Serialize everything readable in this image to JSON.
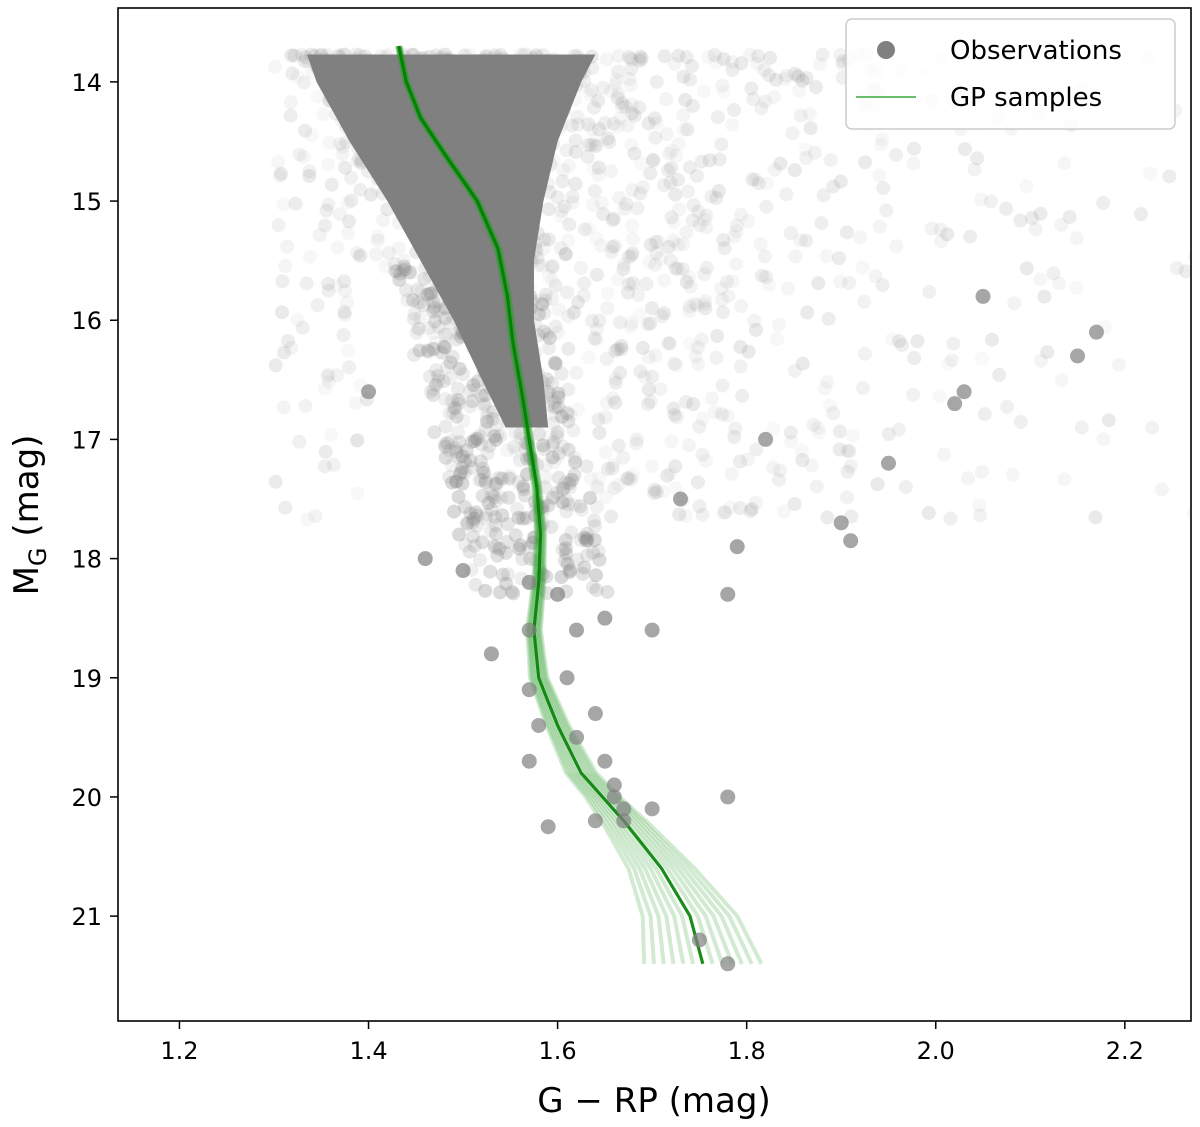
{
  "chart_data": {
    "type": "scatter",
    "title": "",
    "xlabel": "G − RP (mag)",
    "ylabel_main": "M",
    "ylabel_sub": "G",
    "ylabel_unit": " (mag)",
    "xlim": [
      1.135,
      2.27
    ],
    "ylim": [
      21.88,
      13.38
    ],
    "y_inverted": true,
    "grid": false,
    "legend_position": "top-right",
    "x_ticks": [
      {
        "value": 1.2,
        "label": "1.2"
      },
      {
        "value": 1.4,
        "label": "1.4"
      },
      {
        "value": 1.6,
        "label": "1.6"
      },
      {
        "value": 1.8,
        "label": "1.8"
      },
      {
        "value": 2.0,
        "label": "2.0"
      },
      {
        "value": 2.2,
        "label": "2.2"
      }
    ],
    "y_ticks": [
      {
        "value": 14,
        "label": "14"
      },
      {
        "value": 15,
        "label": "15"
      },
      {
        "value": 16,
        "label": "16"
      },
      {
        "value": 17,
        "label": "17"
      },
      {
        "value": 18,
        "label": "18"
      },
      {
        "value": 19,
        "label": "19"
      },
      {
        "value": 20,
        "label": "20"
      },
      {
        "value": 21,
        "label": "21"
      }
    ],
    "colors": {
      "observations": "#808080",
      "gp": "#008000",
      "gp_light": "#2ca02c"
    },
    "legend": [
      {
        "label": "Observations",
        "marker": "circle"
      },
      {
        "label": "GP samples",
        "marker": "line"
      }
    ],
    "observations_dense_region": {
      "description_values": "dense core of stars (envelope as [M_G, left color, right color])",
      "envelope": [
        [
          13.77,
          1.335,
          1.64
        ],
        [
          14.0,
          1.345,
          1.625
        ],
        [
          14.5,
          1.38,
          1.6
        ],
        [
          15.0,
          1.42,
          1.585
        ],
        [
          15.5,
          1.455,
          1.575
        ],
        [
          16.0,
          1.49,
          1.575
        ],
        [
          16.5,
          1.52,
          1.585
        ],
        [
          16.9,
          1.545,
          1.59
        ]
      ]
    },
    "observations_faint_points": [
      [
        19.1,
        1.57
      ],
      [
        19.3,
        1.64
      ],
      [
        19.5,
        1.62
      ],
      [
        19.7,
        1.57
      ],
      [
        19.7,
        1.65
      ],
      [
        19.9,
        1.66
      ],
      [
        20.0,
        1.66
      ],
      [
        20.1,
        1.67
      ],
      [
        20.1,
        1.7
      ],
      [
        20.2,
        1.67
      ],
      [
        20.2,
        1.64
      ],
      [
        20.25,
        1.59
      ],
      [
        20.0,
        1.78
      ],
      [
        21.2,
        1.75
      ],
      [
        21.4,
        1.78
      ],
      [
        18.6,
        1.62
      ],
      [
        18.6,
        1.7
      ],
      [
        18.8,
        1.53
      ],
      [
        18.5,
        1.65
      ],
      [
        18.3,
        1.6
      ],
      [
        18.1,
        1.5
      ],
      [
        18.0,
        1.46
      ],
      [
        18.2,
        1.57
      ],
      [
        17.5,
        1.73
      ],
      [
        17.9,
        1.79
      ],
      [
        18.3,
        1.78
      ],
      [
        17.7,
        1.9
      ],
      [
        17.85,
        1.91
      ],
      [
        17.2,
        1.95
      ],
      [
        16.7,
        2.02
      ],
      [
        16.6,
        2.03
      ],
      [
        16.3,
        2.15
      ],
      [
        16.1,
        2.17
      ],
      [
        15.8,
        2.05
      ],
      [
        16.6,
        1.4
      ],
      [
        17.0,
        1.82
      ],
      [
        18.6,
        1.57
      ],
      [
        19.0,
        1.61
      ],
      [
        19.4,
        1.58
      ]
    ],
    "gp_mean": [
      [
        13.7,
        1.432
      ],
      [
        14.0,
        1.44
      ],
      [
        14.3,
        1.455
      ],
      [
        14.6,
        1.48
      ],
      [
        15.0,
        1.515
      ],
      [
        15.4,
        1.537
      ],
      [
        15.8,
        1.547
      ],
      [
        16.2,
        1.553
      ],
      [
        16.6,
        1.562
      ],
      [
        17.0,
        1.57
      ],
      [
        17.4,
        1.578
      ],
      [
        17.8,
        1.582
      ],
      [
        18.2,
        1.58
      ],
      [
        18.6,
        1.575
      ],
      [
        19.0,
        1.58
      ],
      [
        19.4,
        1.6
      ],
      [
        19.8,
        1.625
      ],
      [
        20.2,
        1.67
      ],
      [
        20.6,
        1.71
      ],
      [
        21.0,
        1.74
      ],
      [
        21.5,
        1.757
      ]
    ],
    "gp_band_halfwidth": [
      [
        13.7,
        0.002
      ],
      [
        16.8,
        0.003
      ],
      [
        17.5,
        0.004
      ],
      [
        18.2,
        0.006
      ],
      [
        18.8,
        0.008
      ],
      [
        19.4,
        0.012
      ],
      [
        20.0,
        0.018
      ],
      [
        20.6,
        0.035
      ],
      [
        21.0,
        0.05
      ],
      [
        21.5,
        0.065
      ]
    ]
  }
}
